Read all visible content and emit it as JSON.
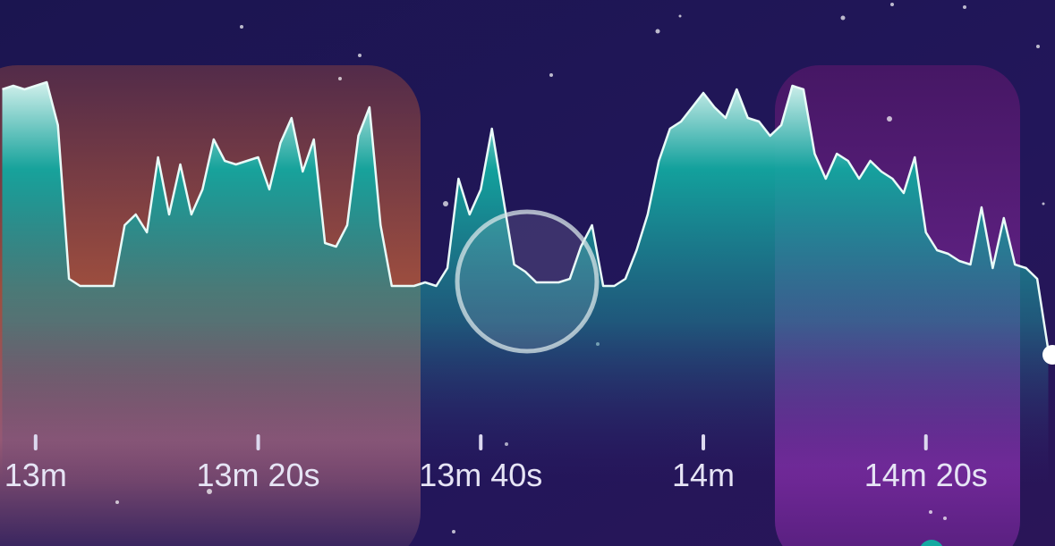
{
  "chart_data": {
    "type": "area",
    "x": [
      777,
      778,
      779,
      780,
      781,
      782,
      783,
      784,
      785,
      786,
      787,
      788,
      789,
      790,
      791,
      792,
      793,
      794,
      795,
      796,
      797,
      798,
      799,
      800,
      801,
      802,
      803,
      804,
      805,
      806,
      807,
      808,
      809,
      810,
      811,
      812,
      813,
      814,
      815,
      816,
      817,
      818,
      819,
      820,
      821,
      822,
      823,
      824,
      825,
      826,
      827,
      828,
      829,
      830,
      831,
      832,
      833,
      834,
      835,
      836,
      837,
      838,
      839,
      840,
      841,
      842,
      843,
      844,
      845,
      846,
      847,
      848,
      849,
      850,
      851,
      852,
      853,
      854,
      855,
      856,
      857,
      858,
      859,
      860,
      861,
      862,
      863,
      864,
      865,
      866,
      867,
      868,
      869,
      870,
      871
    ],
    "values": [
      95,
      96,
      95,
      96,
      97,
      85,
      42,
      40,
      40,
      40,
      40,
      57,
      60,
      55,
      76,
      60,
      74,
      60,
      67,
      81,
      75,
      74,
      75,
      76,
      67,
      80,
      87,
      72,
      81,
      52,
      51,
      57,
      82,
      90,
      57,
      40,
      40,
      40,
      41,
      40,
      45,
      70,
      60,
      67,
      84,
      65,
      46,
      44,
      41,
      41,
      41,
      42,
      51,
      57,
      40,
      40,
      42,
      50,
      60,
      75,
      84,
      86,
      90,
      94,
      90,
      87,
      95,
      87,
      86,
      82,
      85,
      96,
      95,
      77,
      70,
      77,
      75,
      70,
      75,
      72,
      70,
      66,
      76,
      55,
      50,
      49,
      47,
      46,
      62,
      45,
      59,
      46,
      45,
      42,
      22
    ],
    "color": "#14a9a1",
    "xlim": [
      776.8,
      871.6
    ],
    "ylim": [
      0,
      100
    ],
    "xticks": [
      {
        "value": 780,
        "label": "13m"
      },
      {
        "value": 800,
        "label": "13m 20s"
      },
      {
        "value": 820,
        "label": "13m 40s"
      },
      {
        "value": 840,
        "label": "14m"
      },
      {
        "value": 860,
        "label": "14m 20s"
      }
    ]
  }
}
